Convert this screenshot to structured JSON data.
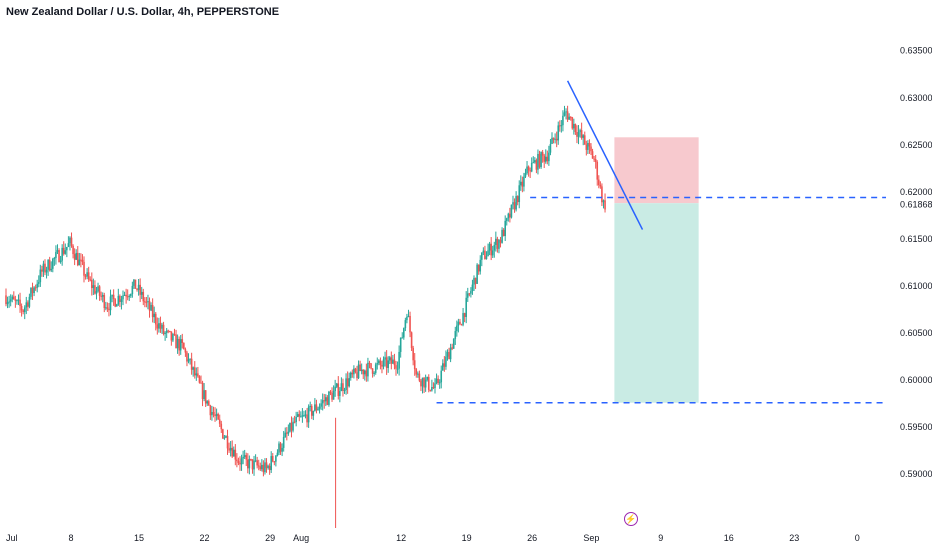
{
  "chart_title": "New Zealand Dollar / U.S. Dollar, 4h, PEPPERSTONE",
  "colors": {
    "up": "#26a69a",
    "down": "#ef5350",
    "trendline": "#2962ff",
    "dashed_level": "#2962ff",
    "risk_zone": "#f7c9ce",
    "reward_zone": "#c9ebe4",
    "events_icon": "#9c27b0"
  },
  "chart_data": {
    "type": "candlestick",
    "title": "New Zealand Dollar / U.S. Dollar, 4h, PEPPERSTONE",
    "ylim": [
      0.5862,
      0.6372
    ],
    "price_ticks": [
      "0.63500",
      "0.63000",
      "0.62500",
      "0.62000",
      "0.61500",
      "0.61000",
      "0.60500",
      "0.60000",
      "0.59500",
      "0.59000"
    ],
    "current_price": "0.61868",
    "time_ticks": [
      "Jul",
      "8",
      "15",
      "22",
      "29",
      "Aug",
      "12",
      "19",
      "26",
      "Sep",
      "9",
      "16",
      "23",
      "0"
    ],
    "price_path_keypoints": [
      {
        "t": "Jul 1",
        "price": 0.609
      },
      {
        "t": "Jul 3",
        "price": 0.6075
      },
      {
        "t": "Jul 5",
        "price": 0.6115
      },
      {
        "t": "Jul 8",
        "price": 0.6145
      },
      {
        "t": "Jul 10",
        "price": 0.6105
      },
      {
        "t": "Jul 12",
        "price": 0.608
      },
      {
        "t": "Jul 15",
        "price": 0.61
      },
      {
        "t": "Jul 18",
        "price": 0.605
      },
      {
        "t": "Jul 20",
        "price": 0.6035
      },
      {
        "t": "Jul 22",
        "price": 0.599
      },
      {
        "t": "Jul 24",
        "price": 0.595
      },
      {
        "t": "Jul 26",
        "price": 0.5915
      },
      {
        "t": "Jul 29",
        "price": 0.5905
      },
      {
        "t": "Aug 1",
        "price": 0.5955
      },
      {
        "t": "Aug 2",
        "price": 0.596
      },
      {
        "t": "Aug 5",
        "price": 0.5985
      },
      {
        "t": "Aug 8",
        "price": 0.601
      },
      {
        "t": "Aug 12",
        "price": 0.602
      },
      {
        "t": "Aug 13",
        "price": 0.6075
      },
      {
        "t": "Aug 14",
        "price": 0.6005
      },
      {
        "t": "Aug 16",
        "price": 0.599
      },
      {
        "t": "Aug 19",
        "price": 0.607
      },
      {
        "t": "Aug 21",
        "price": 0.613
      },
      {
        "t": "Aug 23",
        "price": 0.615
      },
      {
        "t": "Aug 26",
        "price": 0.6225
      },
      {
        "t": "Aug 28",
        "price": 0.624
      },
      {
        "t": "Aug 30",
        "price": 0.6285
      },
      {
        "t": "Sep 2",
        "price": 0.6235
      },
      {
        "t": "Sep 3",
        "price": 0.6187
      }
    ],
    "annotations": [
      {
        "kind": "trendline",
        "from": {
          "t": "Aug 30",
          "price": 0.6318
        },
        "to": {
          "t": "Sep 7",
          "price": 0.616
        }
      },
      {
        "kind": "horizontal-dashed",
        "price": 0.6194,
        "from_t": "Aug 26"
      },
      {
        "kind": "horizontal-dashed",
        "price": 0.5976,
        "from_t": "Aug 16"
      },
      {
        "kind": "short-position",
        "entry": 0.6188,
        "stop": 0.6258,
        "target": 0.5976,
        "from_t": "Sep 4",
        "to_t": "Sep 13"
      }
    ],
    "grid": false
  }
}
